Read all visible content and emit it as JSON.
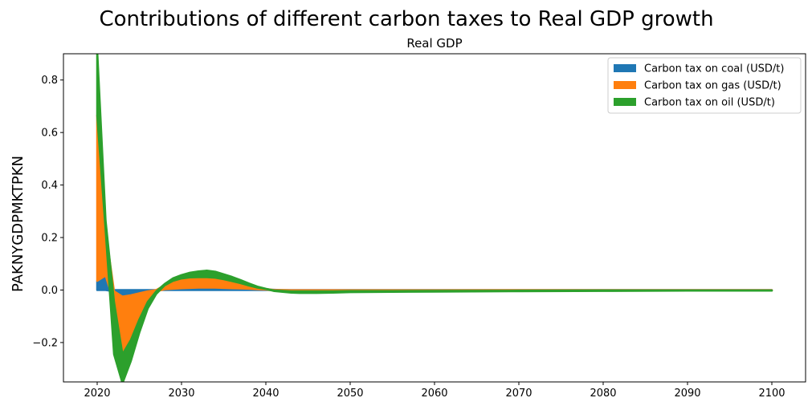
{
  "chart_data": {
    "type": "area",
    "title": "Contributions of different carbon taxes to Real GDP growth",
    "subtitle": "Real GDP",
    "xlabel": "",
    "ylabel": "PAKNYGDPMKTPKN",
    "xlim": [
      2016,
      2104
    ],
    "ylim": [
      -0.35,
      0.9
    ],
    "xticks": [
      2020,
      2030,
      2040,
      2050,
      2060,
      2070,
      2080,
      2090,
      2100
    ],
    "xtick_labels": [
      "2020",
      "2030",
      "2040",
      "2050",
      "2060",
      "2070",
      "2080",
      "2090",
      "2100"
    ],
    "yticks": [
      -0.2,
      0.0,
      0.2,
      0.4,
      0.6,
      0.8
    ],
    "ytick_labels": [
      "−0.2",
      "0.0",
      "0.2",
      "0.4",
      "0.6",
      "0.8"
    ],
    "legend_position": "top-right",
    "grid": false,
    "x": [
      2020,
      2021,
      2022,
      2023,
      2024,
      2025,
      2026,
      2027,
      2028,
      2029,
      2030,
      2031,
      2032,
      2033,
      2034,
      2035,
      2036,
      2037,
      2038,
      2039,
      2040,
      2041,
      2042,
      2043,
      2044,
      2045,
      2046,
      2048,
      2050,
      2055,
      2060,
      2070,
      2080,
      2090,
      2100
    ],
    "series": [
      {
        "name": "Carbon tax on coal (USD/t)",
        "color": "#1f77b4",
        "values": [
          0.035,
          0.055,
          -0.005,
          -0.025,
          -0.02,
          -0.012,
          -0.005,
          0.0,
          0.003,
          0.005,
          0.007,
          0.008,
          0.009,
          0.009,
          0.009,
          0.008,
          0.007,
          0.006,
          0.005,
          0.003,
          0.002,
          0.001,
          0.0,
          -0.001,
          -0.001,
          -0.001,
          -0.001,
          -0.001,
          -0.001,
          -0.001,
          -0.001,
          -0.0005,
          -0.0005,
          -0.0005,
          -0.0005
        ]
      },
      {
        "name": "Carbon tax on gas (USD/t)",
        "color": "#ff7f0e",
        "values": [
          0.63,
          0.17,
          -0.04,
          -0.22,
          -0.17,
          -0.1,
          -0.04,
          -0.005,
          0.015,
          0.03,
          0.037,
          0.04,
          0.04,
          0.04,
          0.038,
          0.033,
          0.027,
          0.02,
          0.012,
          0.006,
          0.002,
          -0.002,
          -0.003,
          -0.004,
          -0.004,
          -0.004,
          -0.004,
          -0.004,
          -0.003,
          -0.003,
          -0.002,
          -0.002,
          -0.001,
          -0.001,
          -0.001
        ]
      },
      {
        "name": "Carbon tax on oil (USD/t)",
        "color": "#2ca02c",
        "values": [
          0.25,
          0.04,
          -0.2,
          -0.11,
          -0.08,
          -0.05,
          -0.025,
          -0.01,
          0.005,
          0.01,
          0.013,
          0.018,
          0.022,
          0.025,
          0.023,
          0.019,
          0.016,
          0.012,
          0.008,
          0.004,
          0.001,
          -0.002,
          -0.004,
          -0.005,
          -0.006,
          -0.006,
          -0.006,
          -0.005,
          -0.004,
          -0.003,
          -0.003,
          -0.002,
          -0.002,
          -0.001,
          -0.001
        ]
      }
    ]
  }
}
